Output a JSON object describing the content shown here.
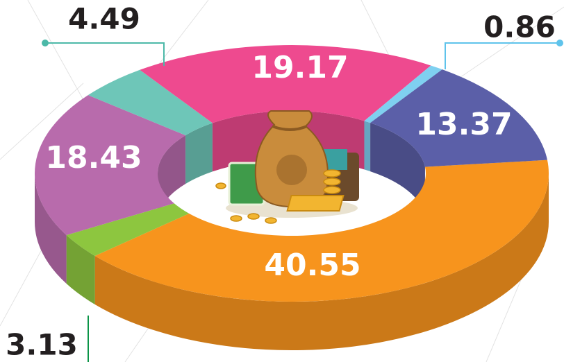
{
  "chart_data": {
    "type": "pie",
    "donut": true,
    "values": [
      40.55,
      3.13,
      18.43,
      4.49,
      19.17,
      0.86,
      13.37
    ],
    "colors": [
      "#f7941d",
      "#8dc63f",
      "#b86bac",
      "#6ec6b8",
      "#ee4a8f",
      "#7fd0f0",
      "#5b5fa8"
    ]
  }
}
